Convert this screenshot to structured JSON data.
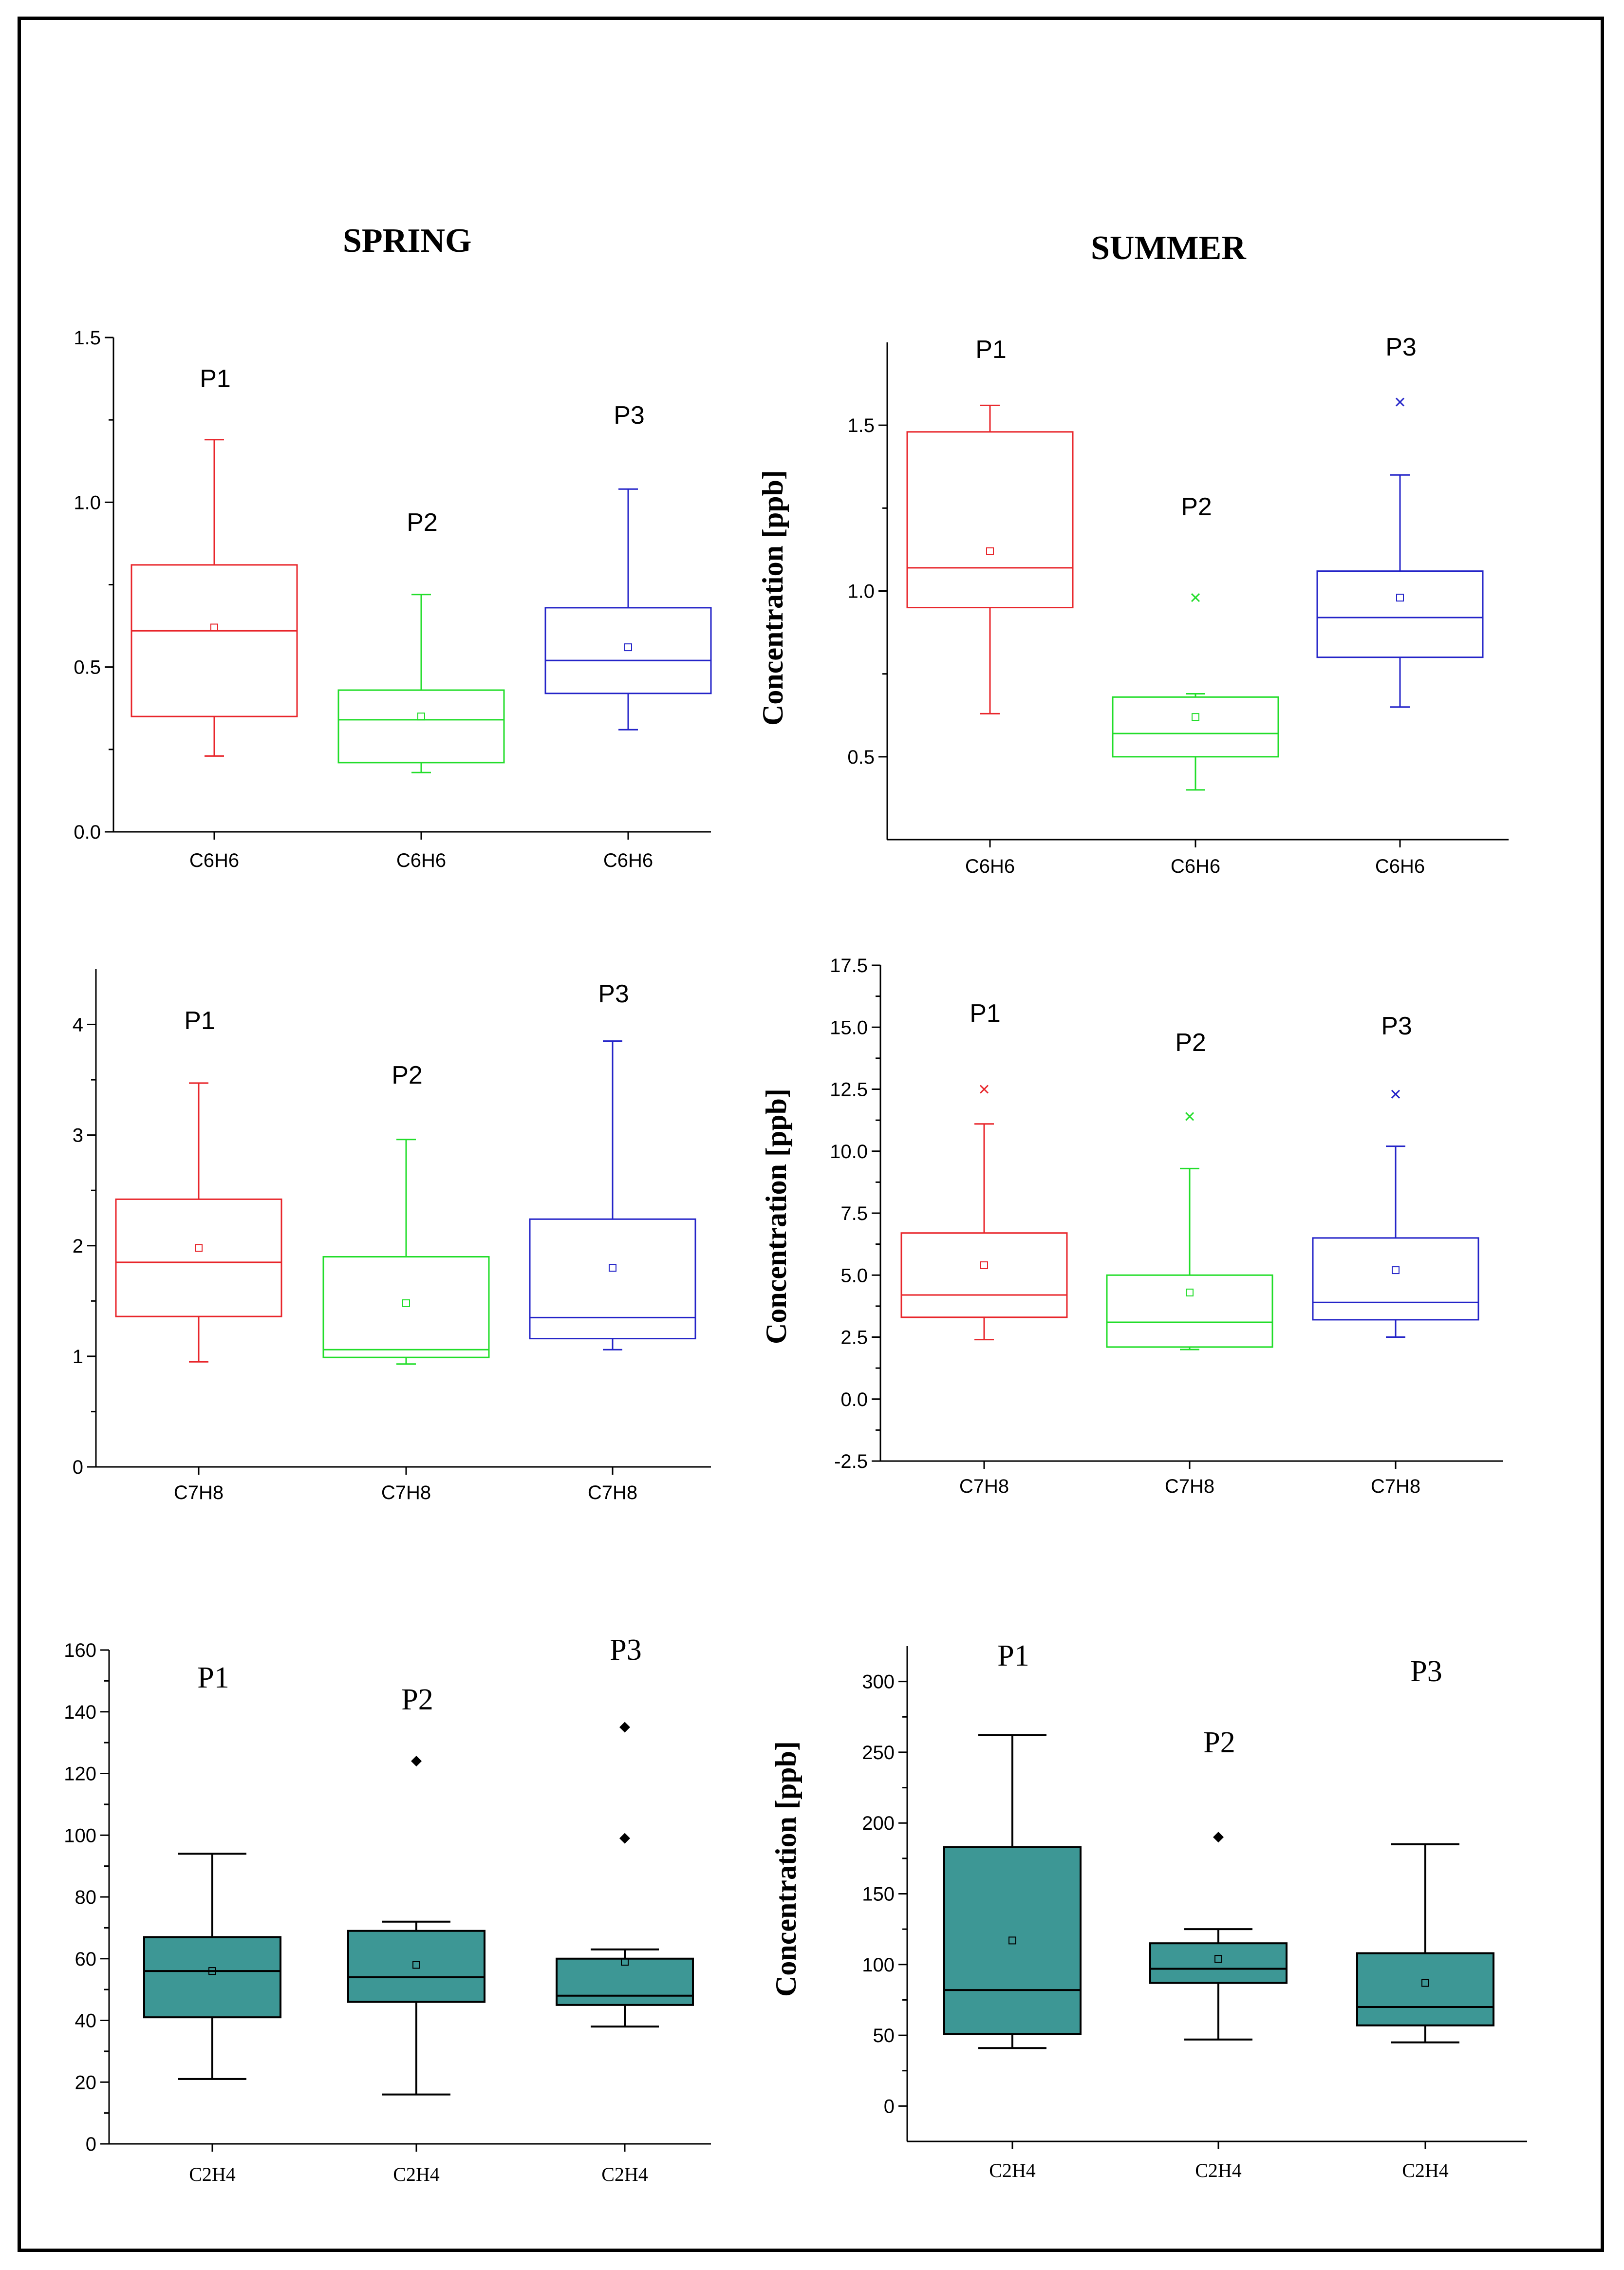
{
  "headers": {
    "spring": "SPRING",
    "summer": "SUMMER"
  },
  "ylabel": "Concentration [ppb]",
  "colors": {
    "p1": "#e8262b",
    "p2": "#22dd2a",
    "p3": "#2424c8",
    "teal": "#3d9795",
    "black": "#000000"
  },
  "chart_data": [
    {
      "id": "spring-c6h6",
      "type": "box",
      "season": "SPRING",
      "compound": "C6H6",
      "ylabel": "",
      "ylim": [
        0.0,
        1.5
      ],
      "yticks": [
        "0.0",
        "0.5",
        "1.0",
        "1.5"
      ],
      "ytick_values": [
        0.0,
        0.5,
        1.0,
        1.5
      ],
      "categories": [
        "C6H6",
        "C6H6",
        "C6H6"
      ],
      "series": [
        {
          "name": "P1",
          "color": "p1",
          "min": 0.23,
          "q1": 0.35,
          "median": 0.61,
          "q3": 0.81,
          "max": 1.19,
          "mean": 0.62,
          "outliers": []
        },
        {
          "name": "P2",
          "color": "p2",
          "min": 0.18,
          "q1": 0.21,
          "median": 0.34,
          "q3": 0.43,
          "max": 0.72,
          "mean": 0.35,
          "outliers": []
        },
        {
          "name": "P3",
          "color": "p3",
          "min": 0.31,
          "q1": 0.42,
          "median": 0.52,
          "q3": 0.68,
          "max": 1.04,
          "mean": 0.56,
          "outliers": []
        }
      ]
    },
    {
      "id": "summer-c6h6",
      "type": "box",
      "season": "SUMMER",
      "compound": "C6H6",
      "ylabel": "Concentration [ppb]",
      "ylim": [
        0.25,
        1.75
      ],
      "yticks": [
        "0.5",
        "1.0",
        "1.5"
      ],
      "ytick_values": [
        0.5,
        1.0,
        1.5
      ],
      "categories": [
        "C6H6",
        "C6H6",
        "C6H6"
      ],
      "series": [
        {
          "name": "P1",
          "color": "p1",
          "min": 0.63,
          "q1": 0.95,
          "median": 1.07,
          "q3": 1.48,
          "max": 1.56,
          "mean": 1.12,
          "outliers": []
        },
        {
          "name": "P2",
          "color": "p2",
          "min": 0.4,
          "q1": 0.5,
          "median": 0.57,
          "q3": 0.68,
          "max": 0.69,
          "mean": 0.62,
          "outliers": [
            0.98
          ]
        },
        {
          "name": "P3",
          "color": "p3",
          "min": 0.65,
          "q1": 0.8,
          "median": 0.92,
          "q3": 1.06,
          "max": 1.35,
          "mean": 0.98,
          "outliers": [
            1.57
          ]
        }
      ]
    },
    {
      "id": "spring-c7h8",
      "type": "box",
      "season": "SPRING",
      "compound": "C7H8",
      "ylabel": "",
      "ylim": [
        0,
        4.5
      ],
      "yticks": [
        "0",
        "1",
        "2",
        "3",
        "4"
      ],
      "ytick_values": [
        0,
        1,
        2,
        3,
        4
      ],
      "categories": [
        "C7H8",
        "C7H8",
        "C7H8"
      ],
      "series": [
        {
          "name": "P1",
          "color": "p1",
          "min": 0.95,
          "q1": 1.36,
          "median": 1.85,
          "q3": 2.42,
          "max": 3.47,
          "mean": 1.98,
          "outliers": []
        },
        {
          "name": "P2",
          "color": "p2",
          "min": 0.93,
          "q1": 0.99,
          "median": 1.06,
          "q3": 1.9,
          "max": 2.96,
          "mean": 1.48,
          "outliers": []
        },
        {
          "name": "P3",
          "color": "p3",
          "min": 1.06,
          "q1": 1.16,
          "median": 1.35,
          "q3": 2.24,
          "max": 3.85,
          "mean": 1.8,
          "outliers": []
        }
      ]
    },
    {
      "id": "summer-c7h8",
      "type": "box",
      "season": "SUMMER",
      "compound": "C7H8",
      "ylabel": "Concentration [ppb]",
      "ylim": [
        -2.5,
        17.5
      ],
      "yticks": [
        "-2.5",
        "0.0",
        "2.5",
        "5.0",
        "7.5",
        "10.0",
        "12.5",
        "15.0",
        "17.5"
      ],
      "ytick_values": [
        -2.5,
        0.0,
        2.5,
        5.0,
        7.5,
        10.0,
        12.5,
        15.0,
        17.5
      ],
      "categories": [
        "C7H8",
        "C7H8",
        "C7H8"
      ],
      "series": [
        {
          "name": "P1",
          "color": "p1",
          "min": 2.4,
          "q1": 3.3,
          "median": 4.2,
          "q3": 6.7,
          "max": 11.1,
          "mean": 5.4,
          "outliers": [
            12.5
          ]
        },
        {
          "name": "P2",
          "color": "p2",
          "min": 2.0,
          "q1": 2.1,
          "median": 3.1,
          "q3": 5.0,
          "max": 9.3,
          "mean": 4.3,
          "outliers": [
            11.4
          ]
        },
        {
          "name": "P3",
          "color": "p3",
          "min": 2.5,
          "q1": 3.2,
          "median": 3.9,
          "q3": 6.5,
          "max": 10.2,
          "mean": 5.2,
          "outliers": [
            12.3
          ]
        }
      ]
    },
    {
      "id": "spring-c2h4",
      "type": "box",
      "season": "SPRING",
      "compound": "C2H4",
      "ylabel": "",
      "ylim": [
        0,
        160
      ],
      "yticks": [
        "0",
        "20",
        "40",
        "60",
        "80",
        "100",
        "120",
        "140",
        "160"
      ],
      "ytick_values": [
        0,
        20,
        40,
        60,
        80,
        100,
        120,
        140,
        160
      ],
      "categories": [
        "C2H4",
        "C2H4",
        "C2H4"
      ],
      "series": [
        {
          "name": "P1",
          "color": "teal",
          "min": 21,
          "q1": 41,
          "median": 56,
          "q3": 67,
          "max": 94,
          "mean": 56,
          "outliers": []
        },
        {
          "name": "P2",
          "color": "teal",
          "min": 16,
          "q1": 46,
          "median": 54,
          "q3": 69,
          "max": 72,
          "mean": 58,
          "outliers": [
            124
          ]
        },
        {
          "name": "P3",
          "color": "teal",
          "min": 38,
          "q1": 45,
          "median": 48,
          "q3": 60,
          "max": 63,
          "mean": 59,
          "outliers": [
            99,
            135
          ]
        }
      ]
    },
    {
      "id": "summer-c2h4",
      "type": "box",
      "season": "SUMMER",
      "compound": "C2H4",
      "ylabel": "Concentration [ppb]",
      "ylim": [
        -25,
        325
      ],
      "yticks": [
        "0",
        "50",
        "100",
        "150",
        "200",
        "250",
        "300"
      ],
      "ytick_values": [
        0,
        50,
        100,
        150,
        200,
        250,
        300
      ],
      "categories": [
        "C2H4",
        "C2H4",
        "C2H4"
      ],
      "series": [
        {
          "name": "P1",
          "color": "teal",
          "min": 41,
          "q1": 51,
          "median": 82,
          "q3": 183,
          "max": 262,
          "mean": 117,
          "outliers": []
        },
        {
          "name": "P2",
          "color": "teal",
          "min": 47,
          "q1": 87,
          "median": 97,
          "q3": 115,
          "max": 125,
          "mean": 104,
          "outliers": [
            190
          ]
        },
        {
          "name": "P3",
          "color": "teal",
          "min": 45,
          "q1": 57,
          "median": 70,
          "q3": 108,
          "max": 185,
          "mean": 87,
          "outliers": []
        }
      ]
    }
  ]
}
